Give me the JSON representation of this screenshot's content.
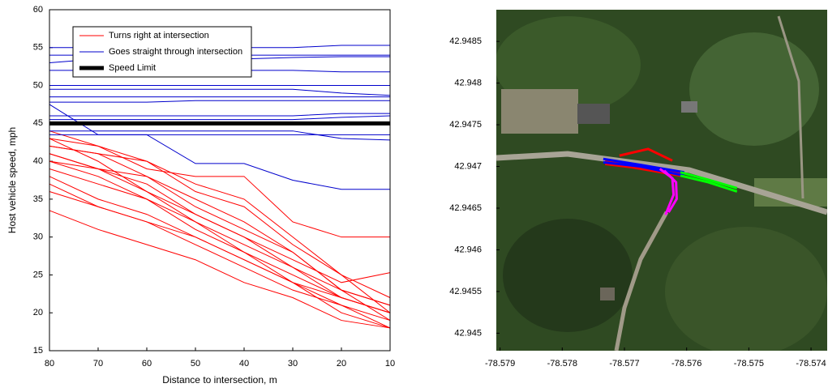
{
  "chart_data": [
    {
      "type": "line",
      "xlabel": "Distance to intersection, m",
      "ylabel": "Host vehicle speed, mph",
      "x": [
        80,
        70,
        60,
        50,
        40,
        30,
        20,
        10
      ],
      "xlim": [
        80,
        10
      ],
      "xticks": [
        80,
        70,
        60,
        50,
        40,
        30,
        20,
        10
      ],
      "ylim": [
        15,
        60
      ],
      "yticks": [
        15,
        20,
        25,
        30,
        35,
        40,
        45,
        50,
        55,
        60
      ],
      "legend": "upper left",
      "series": [
        {
          "name": "Turns right at intersection",
          "color": "#ff0000",
          "width": 1,
          "values": [
            [
              43,
              40,
              36,
              32,
              28,
              24,
              20,
              18
            ],
            [
              42,
              41,
              38,
              35,
              32,
              28,
              23,
              19
            ],
            [
              41,
              39,
              37,
              33,
              30,
              26,
              22,
              20
            ],
            [
              40,
              38,
              35,
              32,
              29,
              26,
              23,
              21
            ],
            [
              39,
              37,
              35,
              31,
              28,
              25,
              22,
              20
            ],
            [
              38,
              35,
              33,
              30,
              27,
              24,
              21,
              19
            ],
            [
              37,
              34,
              32,
              29,
              26,
              23,
              21,
              18
            ],
            [
              33.5,
              31,
              29,
              27,
              24,
              22,
              19,
              18
            ],
            [
              43,
              42,
              39,
              38,
              38,
              32,
              30,
              30
            ],
            [
              42,
              41,
              40,
              36,
              34,
              29,
              25,
              22
            ],
            [
              44,
              42,
              40,
              37,
              35,
              30,
              25,
              20
            ],
            [
              40,
              39,
              38,
              34,
              31,
              28,
              23,
              21
            ],
            [
              36,
              34,
              32,
              30,
              27,
              24,
              22,
              20
            ],
            [
              41,
              39,
              36,
              33,
              30,
              27,
              24,
              25.3
            ]
          ]
        },
        {
          "name": "Goes straight through intersection",
          "color": "#0000cc",
          "width": 1,
          "values": [
            [
              55,
              55,
              55,
              55,
              55,
              55,
              55.3,
              55.3
            ],
            [
              54,
              54,
              54,
              54,
              54,
              54,
              54,
              54
            ],
            [
              53,
              53.5,
              53.5,
              53.5,
              53.5,
              53.7,
              53.8,
              53.8
            ],
            [
              52,
              52,
              52,
              52,
              52,
              52,
              51.8,
              51.8
            ],
            [
              50,
              50,
              50,
              50,
              50,
              50,
              50,
              50
            ],
            [
              49.5,
              49.5,
              49.5,
              49.5,
              49.5,
              49.5,
              49,
              48.7
            ],
            [
              48.5,
              48.5,
              48.5,
              48.5,
              48.5,
              48.5,
              48.5,
              48.5
            ],
            [
              47.8,
              47.8,
              47.8,
              48,
              48,
              48,
              48,
              48
            ],
            [
              47.5,
              43.5,
              43.5,
              39.7,
              39.7,
              37.5,
              36.3,
              36.3
            ],
            [
              46,
              46,
              46,
              46,
              46,
              46,
              46.3,
              46.3
            ],
            [
              45.5,
              45.5,
              45.5,
              45.5,
              45.5,
              45.5,
              45.8,
              46
            ],
            [
              44,
              44,
              44,
              44,
              44,
              44,
              43,
              42.8
            ],
            [
              43.5,
              43.5,
              43.5,
              43.5,
              43.5,
              43.5,
              43.5,
              43.5
            ]
          ]
        },
        {
          "name": "Speed Limit",
          "color": "#000000",
          "width": 5,
          "values": [
            [
              45,
              45,
              45,
              45,
              45,
              45,
              45,
              45
            ]
          ]
        }
      ]
    },
    {
      "type": "map",
      "xlim": [
        -78.57906,
        -78.57374
      ],
      "xticks": [
        -78.579,
        -78.578,
        -78.577,
        -78.576,
        -78.575,
        -78.574
      ],
      "ylim": [
        42.94479,
        42.94888
      ],
      "yticks": [
        42.945,
        42.9455,
        42.946,
        42.9465,
        42.947,
        42.9475,
        42.948,
        42.9485
      ],
      "series": [
        {
          "color": "#ff0000",
          "x": [
            -78.57731,
            -78.57688,
            -78.57649,
            -78.5761
          ],
          "values": [
            42.94707,
            42.94703,
            42.94698,
            42.94692
          ]
        },
        {
          "color": "#ff0000",
          "x": [
            -78.57731,
            -78.57688,
            -78.57649,
            -78.5761
          ],
          "values": [
            42.94703,
            42.94699,
            42.94694,
            42.94689
          ]
        },
        {
          "color": "#ff0000",
          "x": [
            -78.57708,
            -78.57662,
            -78.57623
          ],
          "values": [
            42.94713,
            42.94721,
            42.94707
          ]
        },
        {
          "color": "#0000ff",
          "x": [
            -78.57734,
            -78.57675,
            -78.57604
          ],
          "values": [
            42.94705,
            42.947,
            42.94689
          ]
        },
        {
          "color": "#0000ff",
          "x": [
            -78.57734,
            -78.57675,
            -78.57604
          ],
          "values": [
            42.94709,
            42.94702,
            42.94693
          ]
        },
        {
          "color": "#00ff00",
          "x": [
            -78.5761,
            -78.57565,
            -78.57519
          ],
          "values": [
            42.94689,
            42.94681,
            42.9467
          ]
        },
        {
          "color": "#00ff00",
          "x": [
            -78.5761,
            -78.57565,
            -78.57519
          ],
          "values": [
            42.94693,
            42.94684,
            42.94674
          ]
        },
        {
          "color": "#ff00ff",
          "x": [
            -78.57643,
            -78.57623,
            -78.57621,
            -78.57634
          ],
          "values": [
            42.94697,
            42.94686,
            42.94666,
            42.94642
          ]
        },
        {
          "color": "#ff00ff",
          "x": [
            -78.57636,
            -78.57617,
            -78.57616,
            -78.57629
          ],
          "values": [
            42.94695,
            42.94681,
            42.94661,
            42.94645
          ]
        }
      ]
    }
  ]
}
